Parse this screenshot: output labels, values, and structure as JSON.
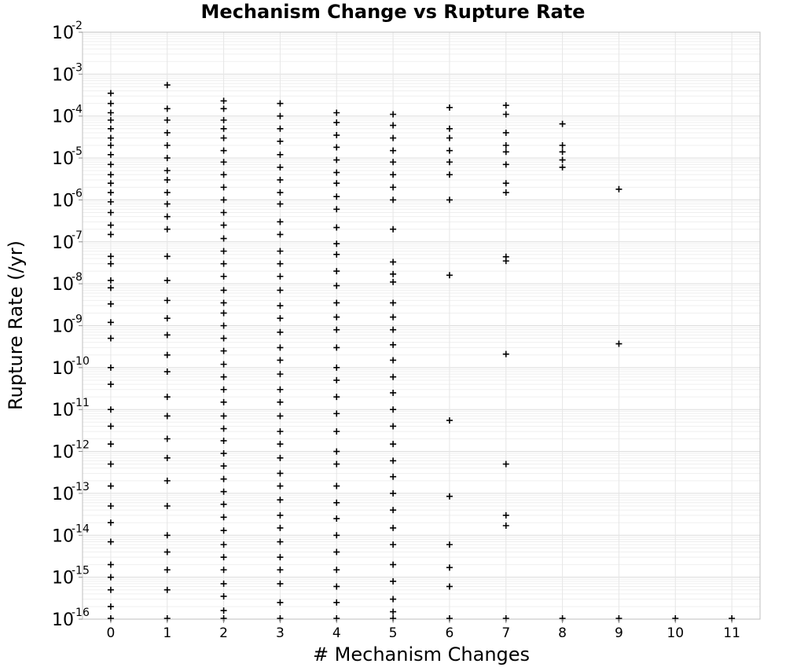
{
  "chart_data": {
    "type": "scatter",
    "title": "Mechanism Change vs Rupture Rate",
    "xlabel": "# Mechanism Changes",
    "ylabel": "Rupture Rate (/yr)",
    "xlim": [
      -0.5,
      11.5
    ],
    "ylim": [
      1e-16,
      0.01
    ],
    "y_scale": "log",
    "grid": true,
    "marker": "plus",
    "marker_color": "#000000",
    "x_ticks": [
      "0",
      "1",
      "2",
      "3",
      "4",
      "5",
      "6",
      "7",
      "8",
      "9",
      "10",
      "11"
    ],
    "y_ticks": [
      {
        "base": "10",
        "exp": "-16"
      },
      {
        "base": "10",
        "exp": "-15"
      },
      {
        "base": "10",
        "exp": "-14"
      },
      {
        "base": "10",
        "exp": "-13"
      },
      {
        "base": "10",
        "exp": "-12"
      },
      {
        "base": "10",
        "exp": "-11"
      },
      {
        "base": "10",
        "exp": "-10"
      },
      {
        "base": "10",
        "exp": "-9"
      },
      {
        "base": "10",
        "exp": "-8"
      },
      {
        "base": "10",
        "exp": "-7"
      },
      {
        "base": "10",
        "exp": "-6"
      },
      {
        "base": "10",
        "exp": "-5"
      },
      {
        "base": "10",
        "exp": "-4"
      },
      {
        "base": "10",
        "exp": "-3"
      },
      {
        "base": "10",
        "exp": "-2"
      }
    ],
    "series": [
      {
        "values": [
          [
            0,
            0.00035
          ],
          [
            0,
            0.0002
          ],
          [
            0,
            0.00012
          ],
          [
            0,
            8e-05
          ],
          [
            0,
            5e-05
          ],
          [
            0,
            3e-05
          ],
          [
            0,
            2e-05
          ],
          [
            0,
            1.2e-05
          ],
          [
            0,
            7e-06
          ],
          [
            0,
            4e-06
          ],
          [
            0,
            2.5e-06
          ],
          [
            0,
            1.5e-06
          ],
          [
            0,
            9e-07
          ],
          [
            0,
            5e-07
          ],
          [
            0,
            2.5e-07
          ],
          [
            0,
            1.5e-07
          ],
          [
            0,
            4.5e-08
          ],
          [
            0,
            3e-08
          ],
          [
            0,
            1.2e-08
          ],
          [
            0,
            8e-09
          ],
          [
            0,
            3.3e-09
          ],
          [
            0,
            1.2e-09
          ],
          [
            0,
            5e-10
          ],
          [
            0,
            1e-10
          ],
          [
            0,
            4e-11
          ],
          [
            0,
            1e-11
          ],
          [
            0,
            4e-12
          ],
          [
            0,
            1.5e-12
          ],
          [
            0,
            5e-13
          ],
          [
            0,
            1.5e-13
          ],
          [
            0,
            5e-14
          ],
          [
            0,
            2e-14
          ],
          [
            0,
            7e-15
          ],
          [
            0,
            2e-15
          ],
          [
            0,
            1e-15
          ],
          [
            0,
            5e-16
          ],
          [
            0,
            2e-16
          ],
          [
            0,
            1e-16
          ],
          [
            1,
            0.00055
          ],
          [
            1,
            0.00015
          ],
          [
            1,
            8e-05
          ],
          [
            1,
            4e-05
          ],
          [
            1,
            2e-05
          ],
          [
            1,
            1e-05
          ],
          [
            1,
            5e-06
          ],
          [
            1,
            3e-06
          ],
          [
            1,
            1.5e-06
          ],
          [
            1,
            8e-07
          ],
          [
            1,
            4e-07
          ],
          [
            1,
            2e-07
          ],
          [
            1,
            4.5e-08
          ],
          [
            1,
            1.2e-08
          ],
          [
            1,
            4e-09
          ],
          [
            1,
            1.5e-09
          ],
          [
            1,
            6e-10
          ],
          [
            1,
            2e-10
          ],
          [
            1,
            8e-11
          ],
          [
            1,
            2e-11
          ],
          [
            1,
            7e-12
          ],
          [
            1,
            2e-12
          ],
          [
            1,
            7e-13
          ],
          [
            1,
            2e-13
          ],
          [
            1,
            5e-14
          ],
          [
            1,
            1e-14
          ],
          [
            1,
            4e-15
          ],
          [
            1,
            1.5e-15
          ],
          [
            1,
            5e-16
          ],
          [
            1,
            1e-16
          ],
          [
            2,
            0.00023
          ],
          [
            2,
            0.00015
          ],
          [
            2,
            8e-05
          ],
          [
            2,
            5e-05
          ],
          [
            2,
            3e-05
          ],
          [
            2,
            1.5e-05
          ],
          [
            2,
            8e-06
          ],
          [
            2,
            4e-06
          ],
          [
            2,
            2e-06
          ],
          [
            2,
            1e-06
          ],
          [
            2,
            5e-07
          ],
          [
            2,
            2.5e-07
          ],
          [
            2,
            1.2e-07
          ],
          [
            2,
            6e-08
          ],
          [
            2,
            3e-08
          ],
          [
            2,
            1.5e-08
          ],
          [
            2,
            7e-09
          ],
          [
            2,
            3.5e-09
          ],
          [
            2,
            2e-09
          ],
          [
            2,
            1e-09
          ],
          [
            2,
            5e-10
          ],
          [
            2,
            2.5e-10
          ],
          [
            2,
            1.2e-10
          ],
          [
            2,
            6e-11
          ],
          [
            2,
            3e-11
          ],
          [
            2,
            1.5e-11
          ],
          [
            2,
            7e-12
          ],
          [
            2,
            3.5e-12
          ],
          [
            2,
            1.8e-12
          ],
          [
            2,
            9e-13
          ],
          [
            2,
            4.5e-13
          ],
          [
            2,
            2.2e-13
          ],
          [
            2,
            1.1e-13
          ],
          [
            2,
            5.5e-14
          ],
          [
            2,
            2.7e-14
          ],
          [
            2,
            1.3e-14
          ],
          [
            2,
            6e-15
          ],
          [
            2,
            3e-15
          ],
          [
            2,
            1.5e-15
          ],
          [
            2,
            7e-16
          ],
          [
            2,
            3.5e-16
          ],
          [
            2,
            1.6e-16
          ],
          [
            2,
            1e-16
          ],
          [
            3,
            0.0002
          ],
          [
            3,
            0.0001
          ],
          [
            3,
            5e-05
          ],
          [
            3,
            2.5e-05
          ],
          [
            3,
            1.2e-05
          ],
          [
            3,
            6e-06
          ],
          [
            3,
            3e-06
          ],
          [
            3,
            1.5e-06
          ],
          [
            3,
            8e-07
          ],
          [
            3,
            3e-07
          ],
          [
            3,
            1.5e-07
          ],
          [
            3,
            6e-08
          ],
          [
            3,
            3e-08
          ],
          [
            3,
            1.5e-08
          ],
          [
            3,
            7e-09
          ],
          [
            3,
            3e-09
          ],
          [
            3,
            1.5e-09
          ],
          [
            3,
            7e-10
          ],
          [
            3,
            3e-10
          ],
          [
            3,
            1.5e-10
          ],
          [
            3,
            7e-11
          ],
          [
            3,
            3e-11
          ],
          [
            3,
            1.5e-11
          ],
          [
            3,
            7e-12
          ],
          [
            3,
            3e-12
          ],
          [
            3,
            1.5e-12
          ],
          [
            3,
            7e-13
          ],
          [
            3,
            3e-13
          ],
          [
            3,
            1.5e-13
          ],
          [
            3,
            7e-14
          ],
          [
            3,
            3e-14
          ],
          [
            3,
            1.5e-14
          ],
          [
            3,
            7e-15
          ],
          [
            3,
            3e-15
          ],
          [
            3,
            1.5e-15
          ],
          [
            3,
            7e-16
          ],
          [
            3,
            2.5e-16
          ],
          [
            3,
            1e-16
          ],
          [
            4,
            0.00012
          ],
          [
            4,
            7e-05
          ],
          [
            4,
            3.5e-05
          ],
          [
            4,
            1.8e-05
          ],
          [
            4,
            9e-06
          ],
          [
            4,
            4.5e-06
          ],
          [
            4,
            2.5e-06
          ],
          [
            4,
            1.2e-06
          ],
          [
            4,
            6e-07
          ],
          [
            4,
            2.2e-07
          ],
          [
            4,
            9e-08
          ],
          [
            4,
            5e-08
          ],
          [
            4,
            2e-08
          ],
          [
            4,
            9e-09
          ],
          [
            4,
            3.5e-09
          ],
          [
            4,
            1.6e-09
          ],
          [
            4,
            8e-10
          ],
          [
            4,
            3e-10
          ],
          [
            4,
            1e-10
          ],
          [
            4,
            5e-11
          ],
          [
            4,
            2e-11
          ],
          [
            4,
            8e-12
          ],
          [
            4,
            3e-12
          ],
          [
            4,
            1e-12
          ],
          [
            4,
            5e-13
          ],
          [
            4,
            1.5e-13
          ],
          [
            4,
            6e-14
          ],
          [
            4,
            2.5e-14
          ],
          [
            4,
            1e-14
          ],
          [
            4,
            4e-15
          ],
          [
            4,
            1.5e-15
          ],
          [
            4,
            6e-16
          ],
          [
            4,
            2.5e-16
          ],
          [
            4,
            1e-16
          ],
          [
            5,
            0.00011
          ],
          [
            5,
            6e-05
          ],
          [
            5,
            3e-05
          ],
          [
            5,
            1.5e-05
          ],
          [
            5,
            8e-06
          ],
          [
            5,
            4e-06
          ],
          [
            5,
            2e-06
          ],
          [
            5,
            1e-06
          ],
          [
            5,
            2e-07
          ],
          [
            5,
            3.3e-08
          ],
          [
            5,
            1.7e-08
          ],
          [
            5,
            1.1e-08
          ],
          [
            5,
            3.5e-09
          ],
          [
            5,
            1.6e-09
          ],
          [
            5,
            8e-10
          ],
          [
            5,
            3.5e-10
          ],
          [
            5,
            1.5e-10
          ],
          [
            5,
            6e-11
          ],
          [
            5,
            2.5e-11
          ],
          [
            5,
            1e-11
          ],
          [
            5,
            4e-12
          ],
          [
            5,
            1.5e-12
          ],
          [
            5,
            6e-13
          ],
          [
            5,
            2.5e-13
          ],
          [
            5,
            1e-13
          ],
          [
            5,
            4e-14
          ],
          [
            5,
            1.5e-14
          ],
          [
            5,
            6e-15
          ],
          [
            5,
            2e-15
          ],
          [
            5,
            8e-16
          ],
          [
            5,
            3e-16
          ],
          [
            5,
            1.5e-16
          ],
          [
            5,
            1e-16
          ],
          [
            6,
            0.00016
          ],
          [
            6,
            5e-05
          ],
          [
            6,
            3e-05
          ],
          [
            6,
            1.5e-05
          ],
          [
            6,
            8e-06
          ],
          [
            6,
            4e-06
          ],
          [
            6,
            1e-06
          ],
          [
            6,
            1.6e-08
          ],
          [
            6,
            5.5e-12
          ],
          [
            6,
            8.5e-14
          ],
          [
            6,
            6e-15
          ],
          [
            6,
            1.7e-15
          ],
          [
            6,
            6e-16
          ],
          [
            6,
            1e-16
          ],
          [
            7,
            0.00018
          ],
          [
            7,
            0.00011
          ],
          [
            7,
            4e-05
          ],
          [
            7,
            2e-05
          ],
          [
            7,
            1.4e-05
          ],
          [
            7,
            7e-06
          ],
          [
            7,
            2.5e-06
          ],
          [
            7,
            1.5e-06
          ],
          [
            7,
            4.4e-08
          ],
          [
            7,
            3.5e-08
          ],
          [
            7,
            2.1e-10
          ],
          [
            7,
            5e-13
          ],
          [
            7,
            3e-14
          ],
          [
            7,
            1.7e-14
          ],
          [
            7,
            1e-16
          ],
          [
            8,
            6.5e-05
          ],
          [
            8,
            2e-05
          ],
          [
            8,
            1.4e-05
          ],
          [
            8,
            9e-06
          ],
          [
            8,
            6e-06
          ],
          [
            8,
            1e-16
          ],
          [
            9,
            1.8e-06
          ],
          [
            9,
            3.7e-10
          ],
          [
            9,
            1e-16
          ],
          [
            10,
            1e-16
          ],
          [
            11,
            1e-16
          ]
        ]
      }
    ]
  }
}
